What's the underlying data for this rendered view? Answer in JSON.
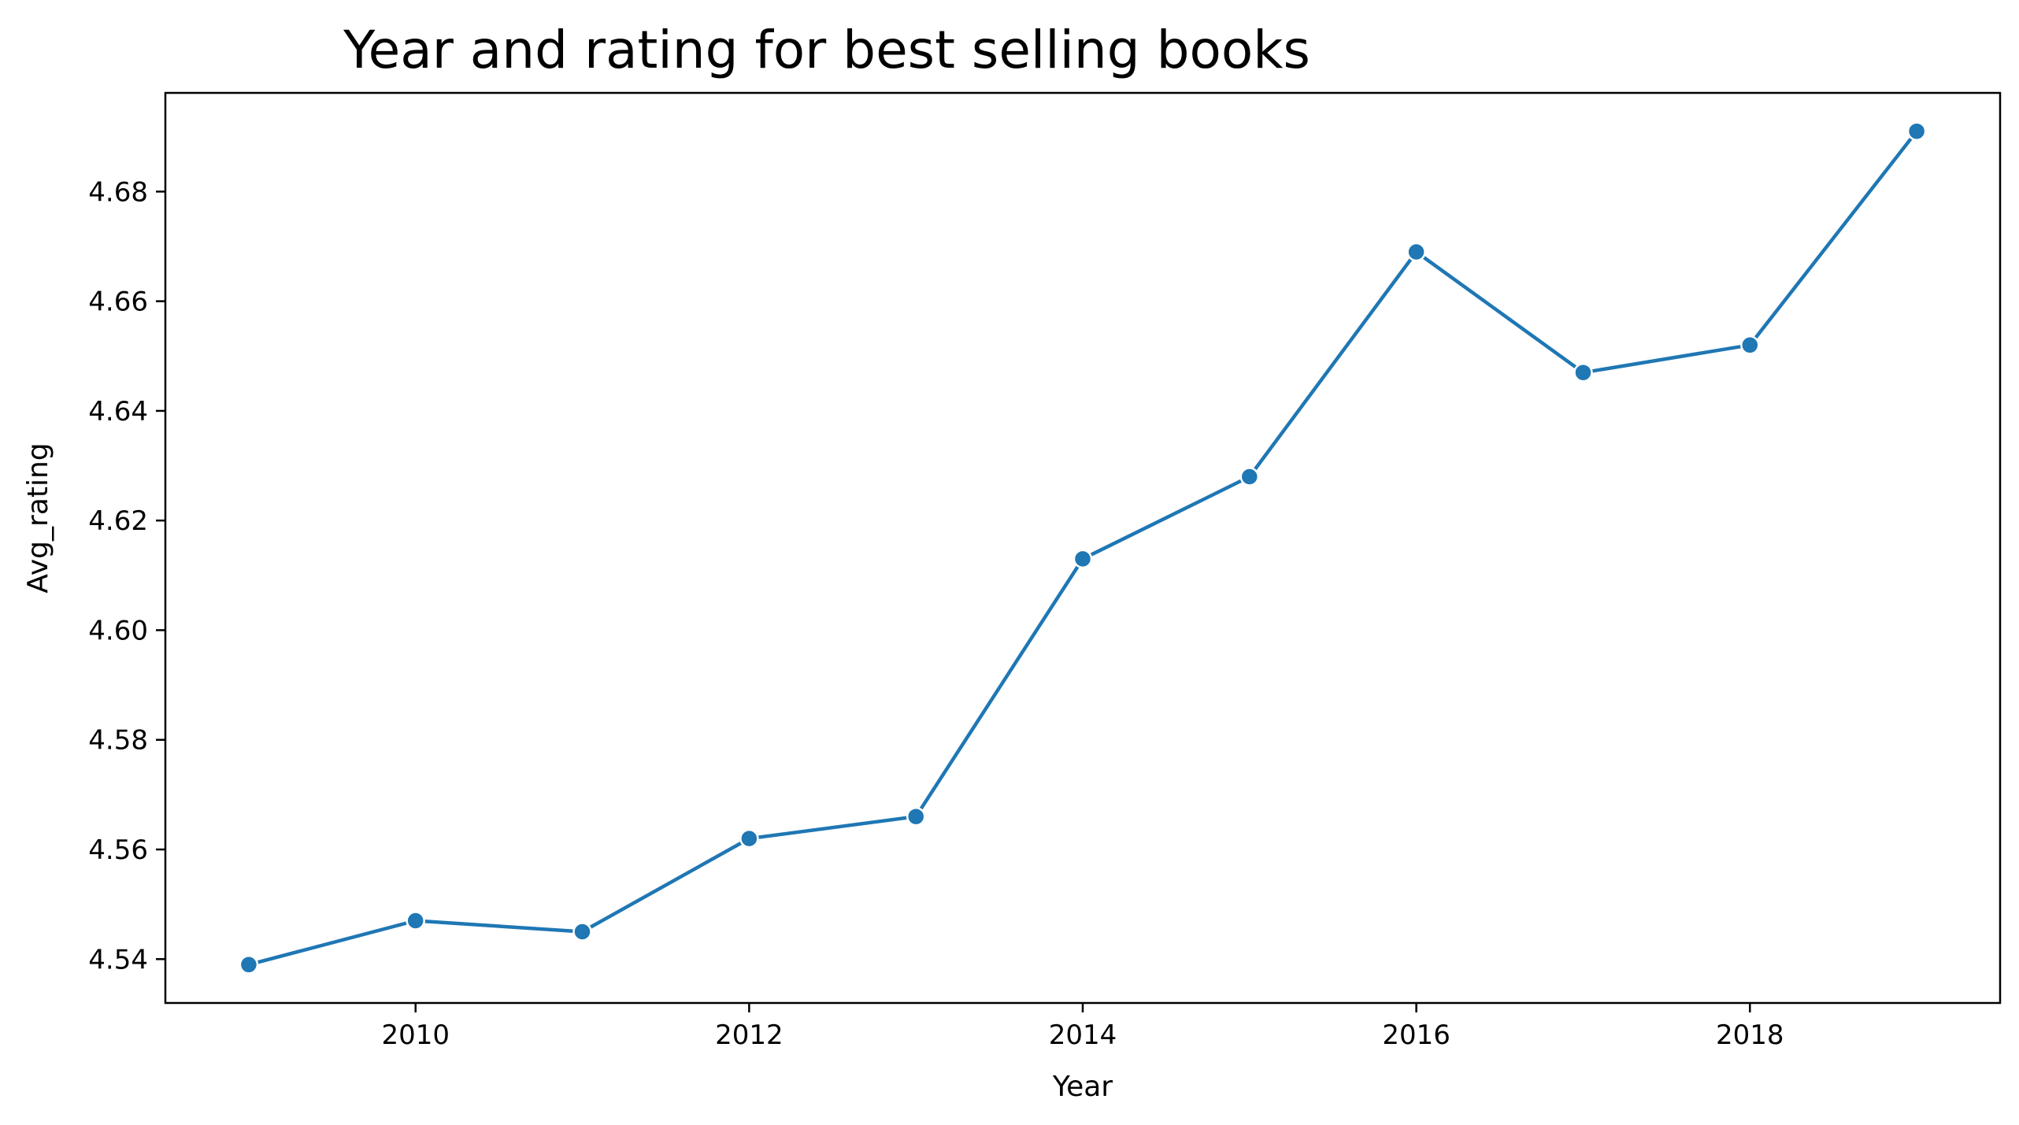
{
  "chart_data": {
    "type": "line",
    "title": "Year and rating for best selling books",
    "xlabel": "Year",
    "ylabel": "Avg_rating",
    "xlim": [
      2008.5,
      2019.5
    ],
    "ylim": [
      4.532,
      4.698
    ],
    "x_ticks": [
      2010,
      2012,
      2014,
      2016,
      2018
    ],
    "x_tick_labels": [
      "2010",
      "2012",
      "2014",
      "2016",
      "2018"
    ],
    "y_ticks": [
      4.54,
      4.56,
      4.58,
      4.6,
      4.62,
      4.64,
      4.66,
      4.68
    ],
    "y_tick_labels": [
      "4.54",
      "4.56",
      "4.58",
      "4.60",
      "4.62",
      "4.64",
      "4.66",
      "4.68"
    ],
    "grid": false,
    "series": [
      {
        "color": "#1f77b4",
        "marker": "circle",
        "x": [
          2009,
          2010,
          2011,
          2012,
          2013,
          2014,
          2015,
          2016,
          2017,
          2018,
          2019
        ],
        "y": [
          4.539,
          4.547,
          4.545,
          4.562,
          4.566,
          4.613,
          4.628,
          4.669,
          4.647,
          4.652,
          4.691
        ]
      }
    ]
  }
}
